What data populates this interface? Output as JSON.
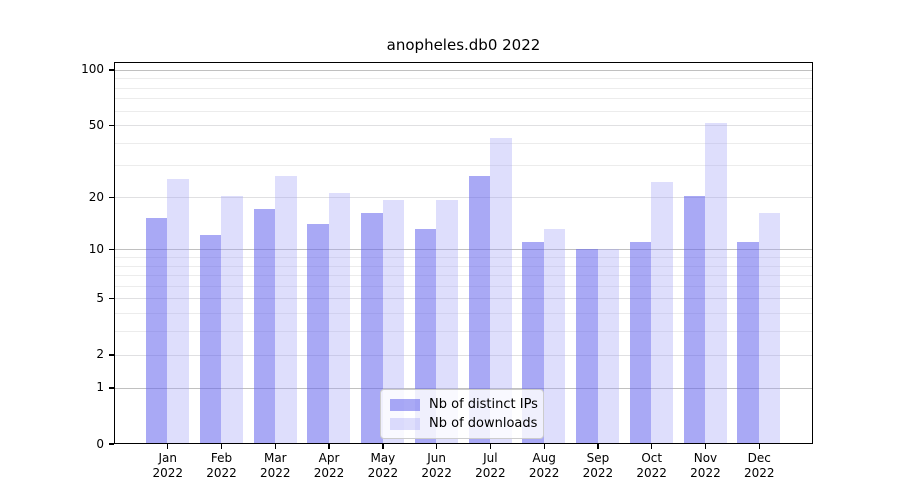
{
  "title": "anopheles.db0 2022",
  "chart_data": {
    "type": "bar",
    "title": "anopheles.db0 2022",
    "categories": [
      "Jan",
      "Feb",
      "Mar",
      "Apr",
      "May",
      "Jun",
      "Jul",
      "Aug",
      "Sep",
      "Oct",
      "Nov",
      "Dec"
    ],
    "category_year": "2022",
    "series": [
      {
        "name": "Nb of distinct IPs",
        "color": "rgba(99,99,237,0.55)",
        "values": [
          15,
          12,
          17,
          14,
          16,
          13,
          26,
          11,
          10,
          11,
          20,
          11
        ]
      },
      {
        "name": "Nb of downloads",
        "color": "rgba(160,160,245,0.35)",
        "values": [
          25,
          20,
          26,
          21,
          19,
          19,
          42,
          13,
          10,
          24,
          51,
          16
        ]
      }
    ],
    "xlabel": "",
    "ylabel": "",
    "y_axis": {
      "scale": "log10(1+x)",
      "tick_values": [
        0,
        1,
        2,
        5,
        10,
        20,
        50,
        100
      ],
      "minor_tick_values": [
        3,
        4,
        6,
        7,
        8,
        9,
        30,
        40,
        60,
        70,
        80,
        90
      ],
      "ylim": [
        0,
        110
      ],
      "grid": "on"
    },
    "legend": {
      "position": "bottom-center",
      "entries": [
        "Nb of distinct IPs",
        "Nb of downloads"
      ]
    }
  },
  "colors": {
    "background": "#ffffff",
    "bar_distinct_ips": "rgba(99,99,237,0.55)",
    "bar_downloads": "rgba(160,160,245,0.35)",
    "grid_major_power10": "#c0c0c0",
    "grid_labeled": "#e0e0e2",
    "grid_minor": "#ececec",
    "axis": "#000000",
    "legend_border": "#cccccc"
  }
}
